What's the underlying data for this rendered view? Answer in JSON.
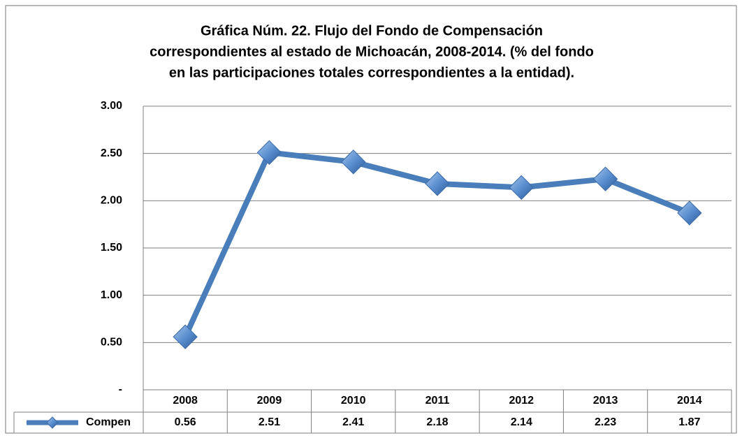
{
  "chart_data": {
    "type": "line",
    "title": [
      "Gráfica Núm. 22. Flujo del Fondo de Compensación",
      "correspondientes al estado de Michoacán, 2008-2014. (% del fondo",
      "en las participaciones totales correspondientes a la entidad)."
    ],
    "categories": [
      "2008",
      "2009",
      "2010",
      "2011",
      "2012",
      "2013",
      "2014"
    ],
    "series": [
      {
        "name": "Compen",
        "color": "#4a7ebb",
        "values": [
          0.56,
          2.51,
          2.41,
          2.18,
          2.14,
          2.23,
          1.87
        ]
      }
    ],
    "ylim": [
      0,
      3
    ],
    "yticks": [
      {
        "value": 0,
        "label": "-"
      },
      {
        "value": 0.5,
        "label": "0.50"
      },
      {
        "value": 1,
        "label": "1.00"
      },
      {
        "value": 1.5,
        "label": "1.50"
      },
      {
        "value": 2,
        "label": "2.00"
      },
      {
        "value": 2.5,
        "label": "2.50"
      },
      {
        "value": 3,
        "label": "3.00"
      }
    ],
    "grid": true,
    "legend": "data-table"
  }
}
